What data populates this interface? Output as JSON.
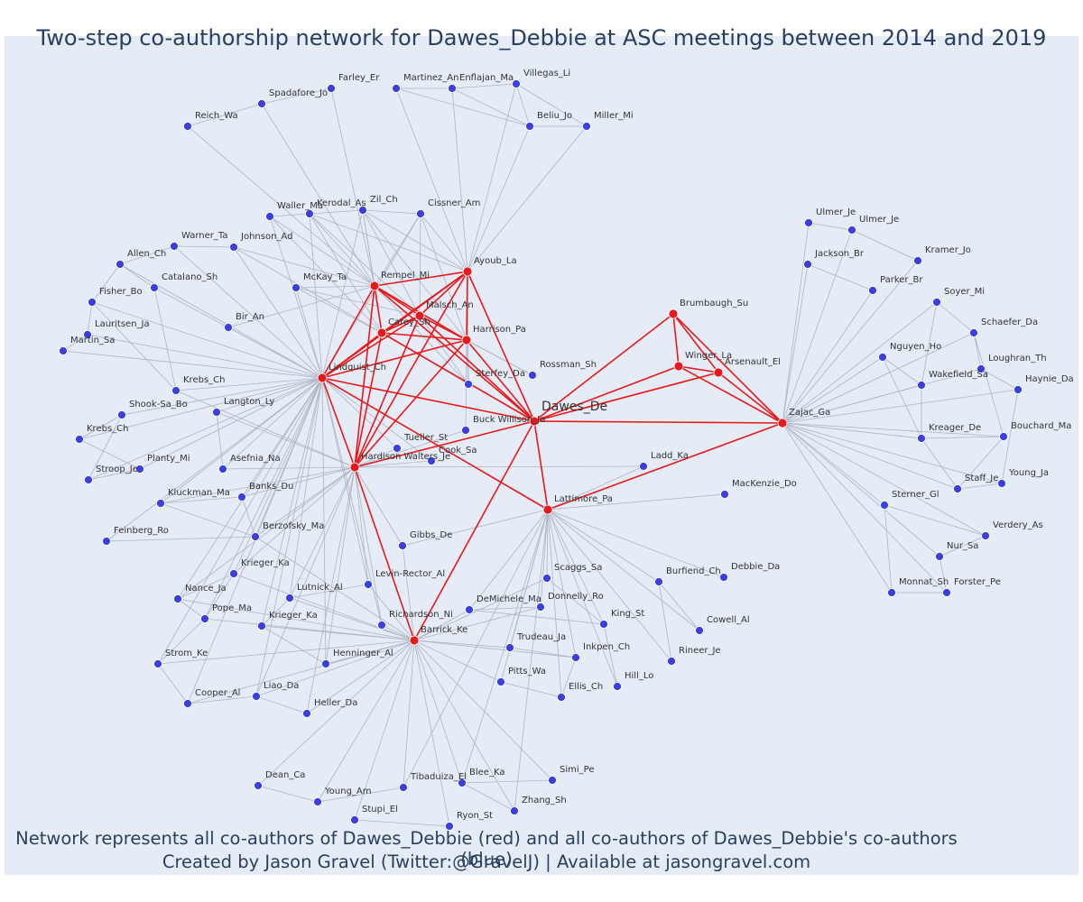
{
  "title": "Two-step co-authorship network for Dawes_Debbie at ASC meetings between 2014 and 2019",
  "caption": {
    "line1": "Network represents all co-authors of Dawes_Debbie (red) and all co-authors of Dawes_Debbie's co-authors (blue)",
    "line2": "Created by Jason Gravel (Twitter:@GravelJ) | Available at jasongravel.com"
  },
  "colors": {
    "primary": "#e8191c",
    "secondary": "#3b3fe0",
    "edge_primary": "#e8191c",
    "edge_secondary": "#aeb4c4"
  },
  "focal": "Dawes_De",
  "primary_nodes": [
    "Dawes_De",
    "Lindquist_Ch",
    "Rempel_Mi",
    "Malsch_An",
    "Carey_Sh",
    "Harrison_Pa",
    "Ayoub_La",
    "Hardison Walters_Je",
    "Barrick_Ke",
    "Lattimore_Pa",
    "Brumbaugh_Su",
    "Winger_La",
    "Arsenault_El",
    "Zajac_Ga"
  ],
  "secondary_nodes": [
    "Farley_Er",
    "Spadafore_Jo",
    "Reich_Wa",
    "Martinez_An",
    "Enflajan_Ma",
    "Villegas_Li",
    "Beliu_Jo",
    "Miller_Mi",
    "Waller_Ma",
    "Kerodal_As",
    "Zil_Ch",
    "Cissner_Am",
    "Johnson_Ad",
    "Warner_Ta",
    "Allen_Ch",
    "Catalano_Sh",
    "Fisher_Bo",
    "Lauritsen_Ja",
    "Martin_Sa",
    "McKay_Ta",
    "Bir_An",
    "Rossman_Sh",
    "Sterfey_Da",
    "Krebs_Ch",
    "Shook-Sa_Bo",
    "Langton_Ly",
    "Krebs_Ch",
    "Buck Willison_Ja",
    "Tueller_St",
    "Cook_Sa",
    "Planty_Mi",
    "Stroop_Je",
    "Asefnia_Na",
    "Ladd_Ka",
    "Kluckman_Ma",
    "Banks_Du",
    "MacKenzie_Do",
    "Feinberg_Ro",
    "Berzofsky_Ma",
    "Gibbs_De",
    "Krieger_Ka",
    "Scaggs_Sa",
    "Levin-Rector_Al",
    "Burfiend_Ch",
    "Debbie_Da",
    "Nance_Ja",
    "Lutnick_Al",
    "Donnelly_Ro",
    "DeMichele_Ma",
    "Pope_Ma",
    "King_St",
    "Krieger_Ka",
    "Richardson_Ni",
    "Cowell_Al",
    "Trudeau_Ja",
    "Inkpen_Ch",
    "Rineer_Je",
    "Strom_Ke",
    "Henninger_Al",
    "Pitts_Wa",
    "Hill_Lo",
    "Liao_Da",
    "Cooper_Al",
    "Ellis_Ch",
    "Heller_Da",
    "Simi_Pe",
    "Dean_Ca",
    "Blee_Ka",
    "Tibaduiza_El",
    "Young_Am",
    "Zhang_Sh",
    "Stupi_El",
    "Ryon_St",
    "Ulmer_Je",
    "Ulmer_Je",
    "Kramer_Jo",
    "Jackson_Br",
    "Parker_Br",
    "Soyer_Mi",
    "Schaefer_Da",
    "Nguyen_Ho",
    "Loughran_Th",
    "Wakefield_Sa",
    "Haynie_Da",
    "Kreager_De",
    "Bouchard_Ma",
    "Staff_Je",
    "Young_Ja",
    "Sterner_Gl",
    "Verdery_As",
    "Nur_Sa",
    "Monnat_Sh",
    "Forster_Pe"
  ]
}
